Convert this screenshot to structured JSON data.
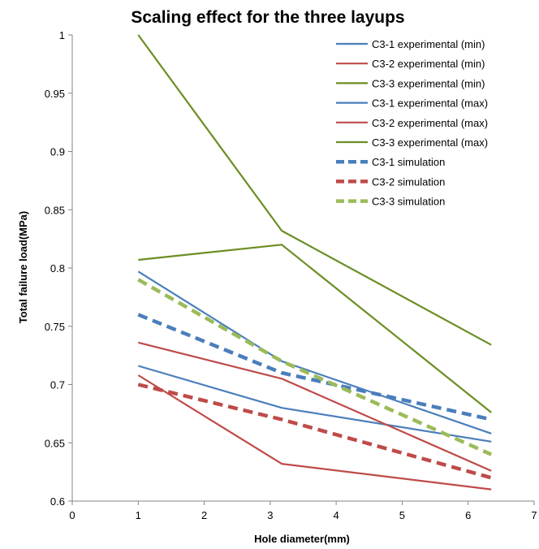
{
  "chart_data": {
    "type": "line",
    "title": "Scaling effect for the three layups",
    "xlabel": "Hole diameter(mm)",
    "ylabel": "Total failure load(MPa)",
    "xlim": [
      0,
      7
    ],
    "ylim": [
      0.6,
      1
    ],
    "xticks": [
      "0",
      "1",
      "2",
      "3",
      "4",
      "5",
      "6",
      "7"
    ],
    "yticks": [
      "0.6",
      "0.65",
      "0.7",
      "0.75",
      "0.8",
      "0.85",
      "0.9",
      "0.95",
      "1"
    ],
    "grid": false,
    "legend_position": "top-right",
    "x": [
      1,
      3.175,
      6.35
    ],
    "series": [
      {
        "name": "C3-1  experimental (min)",
        "values": [
          0.716,
          0.68,
          0.651
        ],
        "color": "#4a7ebb",
        "dashed": false
      },
      {
        "name": "C3-2  experimental (min)",
        "values": [
          0.708,
          0.632,
          0.61
        ],
        "color": "#be4b48",
        "dashed": false
      },
      {
        "name": "C3-3 experimental (min)",
        "values": [
          0.807,
          0.82,
          0.676
        ],
        "color": "#6b8e23",
        "dashed": false
      },
      {
        "name": "C3-1 experimental (max)",
        "values": [
          0.797,
          0.72,
          0.658
        ],
        "color": "#4a7ebb",
        "dashed": false
      },
      {
        "name": "C3-2 experimental (max)",
        "values": [
          0.736,
          0.705,
          0.626
        ],
        "color": "#be4b48",
        "dashed": false
      },
      {
        "name": "C3-3 experimental (max)",
        "values": [
          1.0,
          0.832,
          0.734
        ],
        "color": "#6b8e23",
        "dashed": false
      },
      {
        "name": "C3-1 simulation",
        "values": [
          0.76,
          0.71,
          0.67
        ],
        "color": "#4a7ebb",
        "dashed": true
      },
      {
        "name": "C3-2 simulation",
        "values": [
          0.7,
          0.67,
          0.62
        ],
        "color": "#be4b48",
        "dashed": true
      },
      {
        "name": "C3-3 simulation",
        "values": [
          0.79,
          0.72,
          0.64
        ],
        "color": "#9bbb59",
        "dashed": true
      }
    ]
  }
}
